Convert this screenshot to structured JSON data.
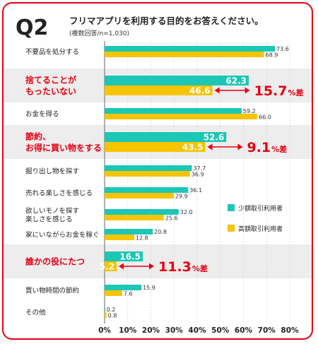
{
  "chart_data": {
    "type": "bar",
    "question_no": "Q2",
    "title": "フリマアプリを利用する目的をお答えください。",
    "subtitle": "(複数回答/n=1,030)",
    "xlim": [
      0,
      80
    ],
    "xticks": [
      "0%",
      "10%",
      "20%",
      "30%",
      "40%",
      "50%",
      "60%",
      "70%",
      "80%"
    ],
    "legend_position": "right",
    "colors": {
      "frame": "#e60012",
      "accent_text": "#e60012",
      "series_small": "#1cc7b5",
      "series_high": "#f7c400",
      "highlight_band": "#ededed"
    },
    "series": [
      {
        "name": "少額取引利用者",
        "key": "small"
      },
      {
        "name": "高額取引利用者",
        "key": "high"
      }
    ],
    "categories": [
      {
        "label": [
          "不要品を処分する"
        ],
        "small": 73.6,
        "high": 68.9,
        "small_label": "73.6",
        "high_label": "68.9"
      },
      {
        "label": [
          "捨てることが",
          "もったいない"
        ],
        "small": 62.3,
        "high": 46.6,
        "small_label": "62.3",
        "high_label": "46.6",
        "highlight": true,
        "diff": "15.7",
        "diff_unit": "%差"
      },
      {
        "label": [
          "お金を得る"
        ],
        "small": 59.2,
        "high": 66.0,
        "small_label": "59.2",
        "high_label": "66.0"
      },
      {
        "label": [
          "節約、",
          "お得に買い物をする"
        ],
        "small": 52.6,
        "high": 43.5,
        "small_label": "52.6",
        "high_label": "43.5",
        "highlight": true,
        "diff": "9.1",
        "diff_unit": "%差"
      },
      {
        "label": [
          "掘り出し物を探す"
        ],
        "small": 37.7,
        "high": 36.9,
        "small_label": "37.7",
        "high_label": "36.9"
      },
      {
        "label": [
          "売れる楽しさを感じる"
        ],
        "small": 36.1,
        "high": 29.9,
        "small_label": "36.1",
        "high_label": "29.9"
      },
      {
        "label": [
          "欲しいモノを探す",
          "楽しさを感じる"
        ],
        "small": 32.0,
        "high": 25.6,
        "small_label": "32.0",
        "high_label": "25.6"
      },
      {
        "label": [
          "家にいながらお金を稼ぐ"
        ],
        "small": 20.8,
        "high": 12.8,
        "small_label": "20.8",
        "high_label": "12.8"
      },
      {
        "label": [
          "誰かの役にたつ"
        ],
        "small": 16.5,
        "high": 5.2,
        "small_label": "16.5",
        "high_label": "5.2",
        "highlight": true,
        "diff": "11.3",
        "diff_unit": "%差"
      },
      {
        "label": [
          "買い物時間の節約"
        ],
        "small": 15.9,
        "high": 7.6,
        "small_label": "15.9",
        "high_label": "7.6"
      },
      {
        "label": [
          "その他"
        ],
        "small": 0.2,
        "high": 0.8,
        "small_label": "0.2",
        "high_label": "0.8"
      }
    ]
  }
}
